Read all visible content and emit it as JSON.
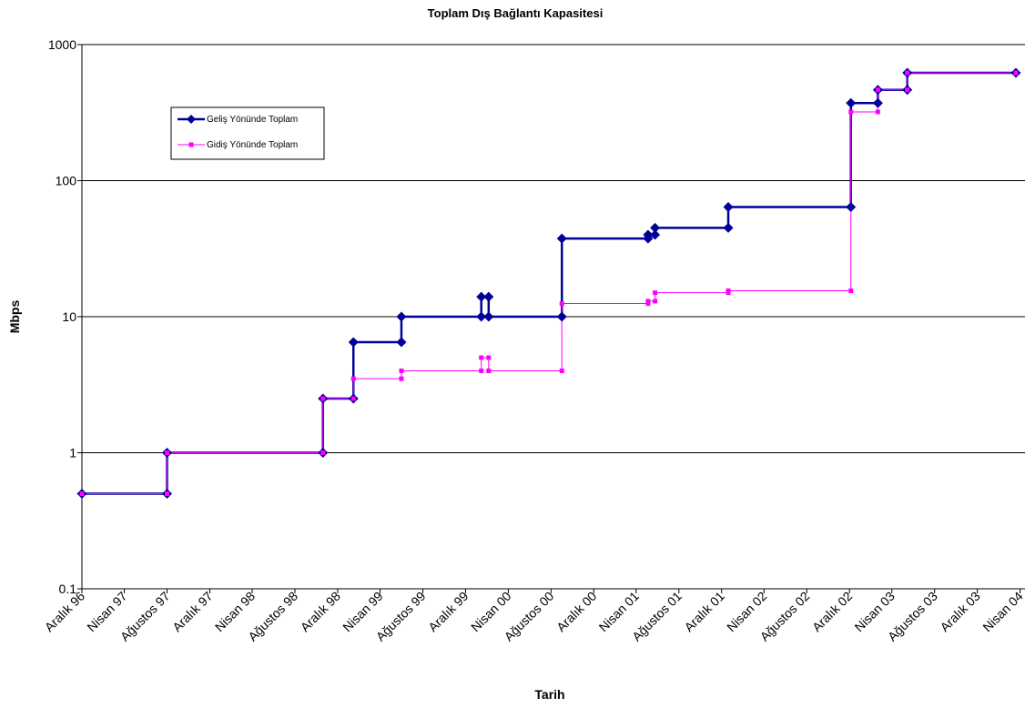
{
  "chart_data": {
    "type": "line",
    "title": "Toplam  Dış Bağlantı Kapasitesi",
    "xlabel": "Tarih",
    "ylabel": "Mbps",
    "y_scale": "log",
    "ylim": [
      0.1,
      1000
    ],
    "y_ticks": [
      "0.1",
      "1",
      "10",
      "100",
      "1000"
    ],
    "x_range": [
      "1996-12-01",
      "2004-04-15"
    ],
    "x_tick_labels": [
      "Aralık 96",
      "Nisan 97",
      "Ağustos 97",
      "Aralık 97",
      "Nisan 98",
      "Ağustos 98",
      "Aralık 98",
      "Nisan 99",
      "Ağustos 99",
      "Aralık 99",
      "Nisan 00",
      "Ağustos 00",
      "Aralık 00",
      "Nisan 01",
      "Ağustos 01",
      "Aralık 01",
      "Nisan 02",
      "Ağustos 02",
      "Aralık 02",
      "Nisan 03",
      "Ağustos 03",
      "Aralık 03",
      "Nisan 04"
    ],
    "x_tick_dates": [
      "1996-12-01",
      "1997-04-01",
      "1997-08-01",
      "1997-12-01",
      "1998-04-01",
      "1998-08-01",
      "1998-12-01",
      "1999-04-01",
      "1999-08-01",
      "1999-12-01",
      "2000-04-01",
      "2000-08-01",
      "2000-12-01",
      "2001-04-01",
      "2001-08-01",
      "2001-12-01",
      "2002-04-01",
      "2002-08-01",
      "2002-12-01",
      "2003-04-01",
      "2003-08-01",
      "2003-12-01",
      "2004-04-01"
    ],
    "grid": "horizontal",
    "legend_position": "top-left",
    "series": [
      {
        "name": "Geliş Yönünde Toplam",
        "color": "#000099",
        "marker": "diamond",
        "points": [
          [
            "1996-12-01",
            0.5
          ],
          [
            "1997-08-01",
            0.5
          ],
          [
            "1997-08-01",
            1
          ],
          [
            "1998-10-20",
            1
          ],
          [
            "1998-10-20",
            2.5
          ],
          [
            "1999-01-15",
            2.5
          ],
          [
            "1999-01-15",
            6.5
          ],
          [
            "1999-06-01",
            6.5
          ],
          [
            "1999-06-01",
            10
          ],
          [
            "2000-01-15",
            10
          ],
          [
            "2000-01-15",
            14
          ],
          [
            "2000-02-05",
            14
          ],
          [
            "2000-02-05",
            10
          ],
          [
            "2000-09-01",
            10
          ],
          [
            "2000-09-01",
            37.5
          ],
          [
            "2001-05-05",
            37.5
          ],
          [
            "2001-05-05",
            40
          ],
          [
            "2001-05-25",
            40
          ],
          [
            "2001-05-25",
            45
          ],
          [
            "2001-12-20",
            45
          ],
          [
            "2001-12-20",
            64
          ],
          [
            "2002-12-05",
            64
          ],
          [
            "2002-12-05",
            372
          ],
          [
            "2003-02-20",
            372
          ],
          [
            "2003-02-20",
            465
          ],
          [
            "2003-05-15",
            465
          ],
          [
            "2003-05-15",
            620
          ],
          [
            "2004-03-20",
            620
          ]
        ]
      },
      {
        "name": "Gidiş Yönünde Toplam",
        "color": "#ff00ff",
        "marker": "square",
        "points": [
          [
            "1996-12-01",
            0.5
          ],
          [
            "1997-08-01",
            0.5
          ],
          [
            "1997-08-01",
            1
          ],
          [
            "1998-10-20",
            1
          ],
          [
            "1998-10-20",
            2.5
          ],
          [
            "1999-01-15",
            2.5
          ],
          [
            "1999-01-15",
            3.5
          ],
          [
            "1999-06-01",
            3.5
          ],
          [
            "1999-06-01",
            4
          ],
          [
            "2000-01-15",
            4
          ],
          [
            "2000-01-15",
            5
          ],
          [
            "2000-02-05",
            5
          ],
          [
            "2000-02-05",
            4
          ],
          [
            "2000-09-01",
            4
          ],
          [
            "2000-09-01",
            12.5
          ],
          [
            "2001-05-05",
            12.5
          ],
          [
            "2001-05-05",
            13
          ],
          [
            "2001-05-25",
            13
          ],
          [
            "2001-05-25",
            15
          ],
          [
            "2001-12-20",
            15
          ],
          [
            "2001-12-20",
            15.5
          ],
          [
            "2002-12-05",
            15.5
          ],
          [
            "2002-12-05",
            320
          ],
          [
            "2003-02-20",
            320
          ],
          [
            "2003-02-20",
            465
          ],
          [
            "2003-05-15",
            465
          ],
          [
            "2003-05-15",
            620
          ],
          [
            "2004-03-20",
            620
          ]
        ]
      }
    ]
  }
}
